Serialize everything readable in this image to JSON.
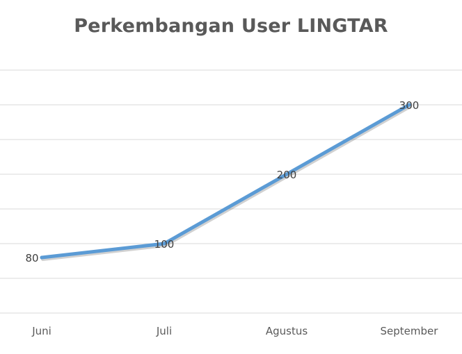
{
  "chart_data": {
    "type": "line",
    "title": "Perkembangan User LINGTAR",
    "categories": [
      "Juni",
      "Juli",
      "Agustus",
      "September"
    ],
    "series": [
      {
        "values": [
          80,
          100,
          200,
          300
        ],
        "data_labels": [
          "80",
          "100",
          "200",
          "300"
        ]
      }
    ],
    "ylim": [
      0,
      350
    ],
    "y_gridlines": [
      0,
      50,
      100,
      150,
      200,
      250,
      300,
      350
    ],
    "grid": true,
    "legend": "none",
    "colors": {
      "line": "#5b9bd5",
      "grid": "#d9d9d9",
      "title": "#595959",
      "tick_text": "#595959",
      "label_text": "#404040"
    }
  }
}
